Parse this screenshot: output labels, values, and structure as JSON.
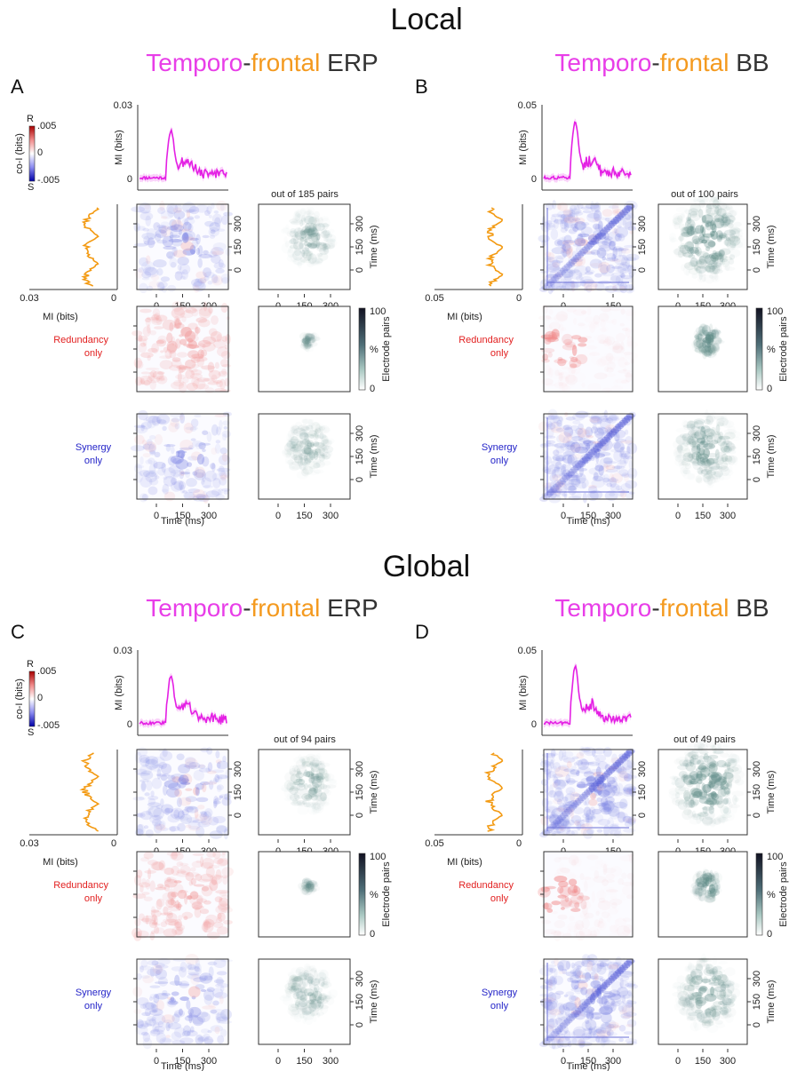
{
  "colors": {
    "temporal": "#e83ee8",
    "frontal": "#f49a1f",
    "neutral": "#333333",
    "redundancy": "#e22020",
    "synergy": "#2323c8",
    "trace_mi": "#e420e4",
    "trace_orange": "#f39a12",
    "pairs_cmap_high": "#1b1b2b",
    "pairs_cmap_mid": "#8ab3ad",
    "pairs_cmap_low": "#ffffff"
  },
  "sections": {
    "local": "Local",
    "global": "Global"
  },
  "title_parts": {
    "temporo": "Temporo",
    "dash": "-",
    "frontal": "frontal",
    "erp": " ERP",
    "bb": " BB"
  },
  "labels": {
    "mi_bits": "MI (bits)",
    "coi_bits": "co-I (bits)",
    "time_ms": "Time (ms)",
    "electrode_pairs": "Electrode pairs",
    "percent": "%",
    "redundancy_line1": "Redundancy",
    "redundancy_line2": "only",
    "synergy_line1": "Synergy",
    "synergy_line2": "only",
    "R": "R",
    "S": "S",
    "coi_max": ".005",
    "coi_zero": "0",
    "coi_min": "-.005",
    "pct_max": "100",
    "pct_min": "0"
  },
  "panels": [
    {
      "id": "A",
      "letter": "A",
      "kind": "ERP",
      "mi_ymax": "0.03",
      "mi_xmax": "0.03",
      "pairs": "out of 185 pairs",
      "time_ticks": [
        "0",
        "150",
        "300"
      ]
    },
    {
      "id": "B",
      "letter": "B",
      "kind": "BB",
      "mi_ymax": "0.05",
      "mi_xmax": "0.05",
      "pairs": "out of 100 pairs",
      "time_ticks": [
        "0",
        "150",
        "300"
      ]
    },
    {
      "id": "C",
      "letter": "C",
      "kind": "ERP",
      "mi_ymax": "0.03",
      "mi_xmax": "0.03",
      "pairs": "out of 94 pairs",
      "time_ticks": [
        "0",
        "150",
        "300"
      ]
    },
    {
      "id": "D",
      "letter": "D",
      "kind": "BB",
      "mi_ymax": "0.05",
      "mi_xmax": "0.05",
      "pairs": "out of 49 pairs",
      "time_ticks": [
        "0",
        "150",
        "300"
      ]
    }
  ]
}
